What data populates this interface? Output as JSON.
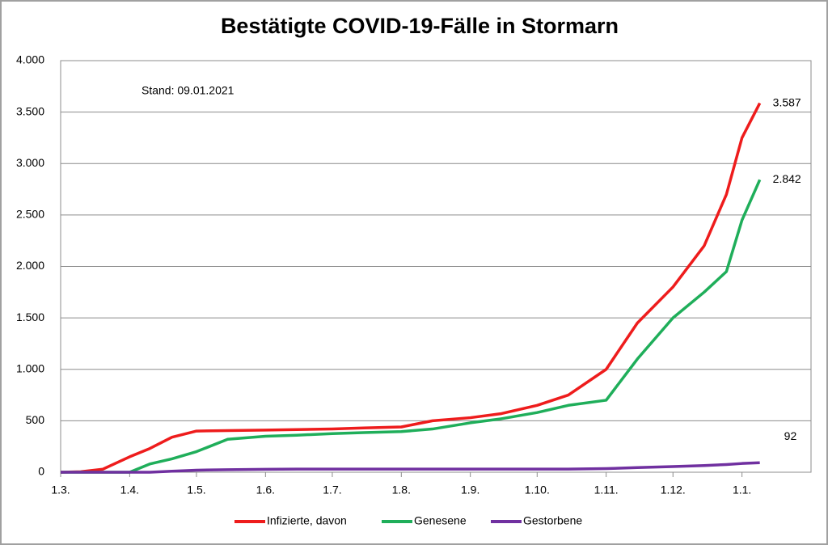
{
  "chart_data": {
    "type": "line",
    "title": "Bestätigte COVID-19-Fälle in Stormarn",
    "annotation": "Stand: 09.01.2021",
    "x": [
      "1.3.",
      "10.3.",
      "20.3.",
      "1.4.",
      "10.4.",
      "20.4.",
      "1.5.",
      "15.5.",
      "1.6.",
      "15.6.",
      "1.7.",
      "15.7.",
      "1.8.",
      "15.8.",
      "1.9.",
      "15.9.",
      "1.10.",
      "15.10.",
      "1.11.",
      "15.11.",
      "1.12.",
      "15.12.",
      "25.12.",
      "1.1.",
      "9.1."
    ],
    "xlim": [
      "1.3.",
      "1.2."
    ],
    "xticks": [
      "1.3.",
      "1.4.",
      "1.5.",
      "1.6.",
      "1.7.",
      "1.8.",
      "1.9.",
      "1.10.",
      "1.11.",
      "1.12.",
      "1.1."
    ],
    "ylim": [
      0,
      4000
    ],
    "yticks": [
      0,
      500,
      {
        "value": 1000,
        "label": "1.000"
      },
      {
        "value": 1500,
        "label": "1.500"
      },
      {
        "value": 2000,
        "label": "2.000"
      },
      {
        "value": 2500,
        "label": "2.500"
      },
      {
        "value": 3000,
        "label": "3.000"
      },
      {
        "value": 3500,
        "label": "3.500"
      },
      {
        "value": 4000,
        "label": "4.000"
      }
    ],
    "grid": true,
    "legend": "bottom",
    "series": [
      {
        "name": "Infizierte, davon",
        "color": "#ee1c1c",
        "values": [
          0,
          5,
          30,
          150,
          230,
          340,
          400,
          405,
          410,
          415,
          420,
          430,
          440,
          500,
          530,
          570,
          650,
          750,
          1000,
          1450,
          1800,
          2200,
          2700,
          3250,
          3587
        ],
        "value_labels": [
          null,
          null,
          null,
          null,
          null,
          null,
          null,
          null,
          null,
          null,
          null,
          null,
          null,
          null,
          null,
          null,
          null,
          null,
          null,
          null,
          null,
          null,
          null,
          null,
          "3.587"
        ]
      },
      {
        "name": "Genesene",
        "color": "#1fae5a",
        "values": [
          0,
          0,
          0,
          0,
          80,
          130,
          200,
          320,
          350,
          360,
          375,
          385,
          395,
          420,
          480,
          520,
          580,
          650,
          700,
          1100,
          1500,
          1750,
          1950,
          2450,
          2842
        ],
        "value_labels": [
          null,
          null,
          null,
          null,
          null,
          null,
          null,
          null,
          null,
          null,
          null,
          null,
          null,
          null,
          null,
          null,
          null,
          null,
          null,
          null,
          null,
          null,
          null,
          null,
          "2.842"
        ]
      },
      {
        "name": "Gestorbene",
        "color": "#7030a0",
        "values": [
          0,
          0,
          0,
          0,
          0,
          10,
          20,
          25,
          28,
          30,
          30,
          30,
          30,
          30,
          30,
          30,
          30,
          30,
          35,
          45,
          55,
          65,
          75,
          85,
          92
        ]
      }
    ]
  }
}
